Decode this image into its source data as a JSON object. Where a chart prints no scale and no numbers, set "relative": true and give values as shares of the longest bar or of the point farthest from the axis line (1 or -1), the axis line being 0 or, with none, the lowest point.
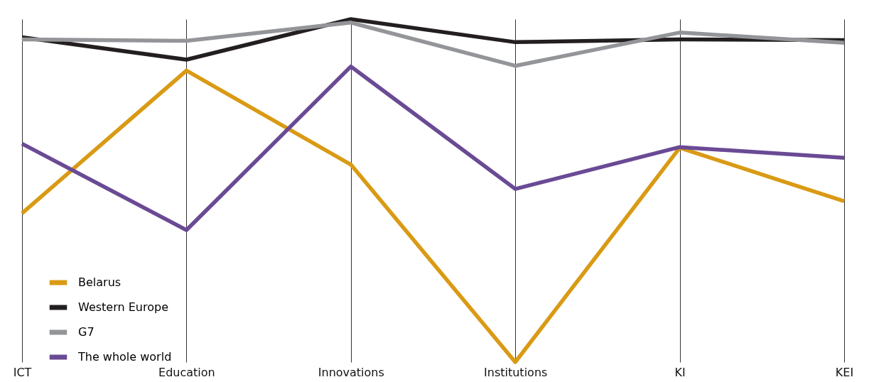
{
  "chart_data": {
    "type": "line",
    "relative": true,
    "categories": [
      "ICT",
      "Education",
      "Innovations",
      "Institutions",
      "KI",
      "KEI"
    ],
    "grid": "x",
    "legend": "bottom left",
    "series": [
      {
        "name": "Belarus",
        "color": "#d99a14",
        "values": [
          0.434,
          0.85,
          0.576,
          0,
          0.625,
          0.469
        ]
      },
      {
        "name": "Western Europe",
        "color": "#231f20",
        "values": [
          0.947,
          0.882,
          1,
          0.933,
          0.941,
          0.939
        ]
      },
      {
        "name": "G7",
        "color": "#939598",
        "values": [
          0.941,
          0.937,
          0.99,
          0.864,
          0.961,
          0.931
        ]
      },
      {
        "name": "The whole world",
        "color": "#6a4a94",
        "values": [
          0.637,
          0.385,
          0.862,
          0.505,
          0.627,
          0.596
        ]
      }
    ]
  }
}
